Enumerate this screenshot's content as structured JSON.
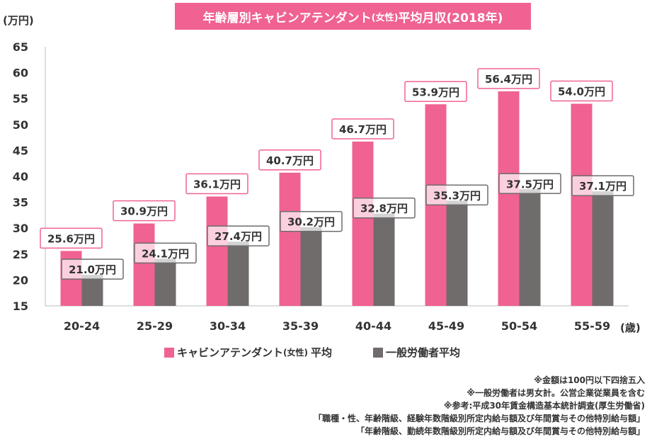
{
  "chart_data": {
    "type": "bar",
    "title": "年齢層別キャビンアテンダント",
    "title_paren": "(女性)",
    "title_tail": "平均月収(2018年)",
    "ylabel": "(万円)",
    "xlabel": "(歳)",
    "ylim": [
      15,
      65
    ],
    "yticks": [
      "15",
      "20",
      "25",
      "30",
      "35",
      "40",
      "45",
      "50",
      "55",
      "60",
      "65"
    ],
    "grid": false,
    "legend_position": "bottom",
    "categories": [
      "20-24",
      "25-29",
      "30-34",
      "35-39",
      "40-44",
      "45-49",
      "50-54",
      "55-59"
    ],
    "series": [
      {
        "name": "キャビンアテンダント",
        "name_paren": "(女性)",
        "name_tail": "平均",
        "color": "#f06292",
        "values": [
          25.6,
          30.9,
          36.1,
          40.7,
          46.7,
          53.9,
          56.4,
          54.0
        ],
        "labels": [
          "25.6万円",
          "30.9万円",
          "36.1万円",
          "40.7万円",
          "46.7万円",
          "53.9万円",
          "56.4万円",
          "54.0万円"
        ]
      },
      {
        "name": "一般労働者平均",
        "color": "#716c6c",
        "values": [
          21.0,
          24.1,
          27.4,
          30.2,
          32.8,
          35.3,
          37.5,
          37.1
        ],
        "labels": [
          "21.0万円",
          "24.1万円",
          "27.4万円",
          "30.2万円",
          "32.8万円",
          "35.3万円",
          "37.5万円",
          "37.1万円"
        ]
      }
    ]
  },
  "notes": [
    "※金額は100円以下四捨五入",
    "※一般労働者は男女計。公営企業従業員を含む",
    "※参考:平成30年賃金構造基本統計調査(厚生労働省)",
    "「職種・性、年齢階級、経験年数階級別所定内給与額及び年間賞与その他特別給与額」",
    "「年齢階級、勤続年数階級別所定内給与額及び年間賞与その他特別給与額」"
  ]
}
